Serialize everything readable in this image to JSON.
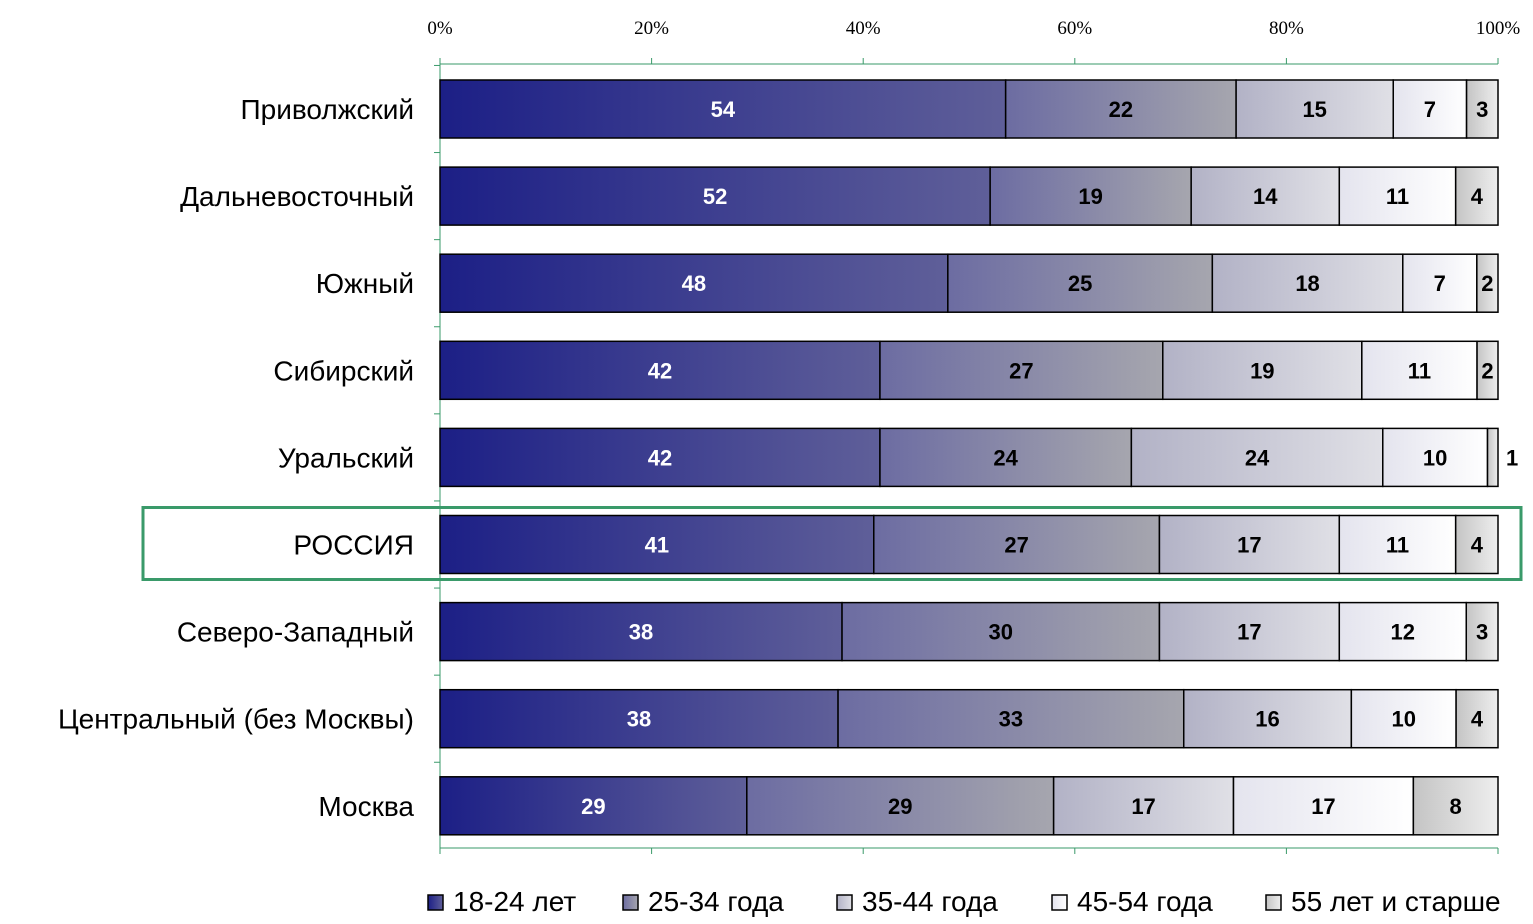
{
  "chart_data": {
    "type": "bar",
    "orientation": "horizontal",
    "stacked": "percent",
    "title": "",
    "xlabel": "",
    "ylabel": "",
    "xlim": [
      0,
      100
    ],
    "x_ticks": [
      "0%",
      "20%",
      "40%",
      "60%",
      "80%",
      "100%"
    ],
    "categories": [
      "Приволжский",
      "Дальневосточный",
      "Южный",
      "Сибирский",
      "Уральский",
      "РОССИЯ",
      "Северо-Западный",
      "Центральный (без Москвы)",
      "Москва"
    ],
    "highlighted_category": "РОССИЯ",
    "series": [
      {
        "name": "18-24 лет",
        "values": [
          54,
          52,
          48,
          42,
          42,
          41,
          38,
          38,
          29
        ],
        "color": "#2a2d8a",
        "label_color": "#ffffff"
      },
      {
        "name": "25-34 года",
        "values": [
          22,
          19,
          25,
          27,
          24,
          27,
          30,
          33,
          29
        ],
        "color": "#8a8aa6",
        "label_color": "#000000"
      },
      {
        "name": "35-44 года",
        "values": [
          15,
          14,
          18,
          19,
          24,
          17,
          17,
          16,
          17
        ],
        "color": "#c4c4d2",
        "label_color": "#000000"
      },
      {
        "name": "45-54 года",
        "values": [
          7,
          11,
          7,
          11,
          10,
          11,
          12,
          10,
          17
        ],
        "color": "#f4f4f8",
        "label_color": "#000000"
      },
      {
        "name": "55 лет  и старше",
        "values": [
          3,
          4,
          2,
          2,
          1,
          4,
          3,
          4,
          8
        ],
        "color": "#d6d6d6",
        "label_color": "#000000"
      }
    ],
    "grid": false,
    "legend_position": "bottom",
    "accent_color": "#3a9a6a"
  }
}
